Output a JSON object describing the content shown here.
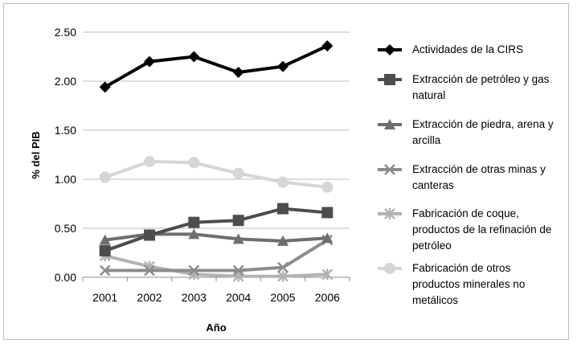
{
  "chart_data": {
    "type": "line",
    "title": "",
    "xlabel": "Año",
    "ylabel": "% del PIB",
    "categories": [
      "2001",
      "2002",
      "2003",
      "2004",
      "2005",
      "2006"
    ],
    "ylim": [
      0,
      2.5
    ],
    "yticks": [
      "0.00",
      "0.50",
      "1.00",
      "1.50",
      "2.00",
      "2.50"
    ],
    "grid": true,
    "legend_position": "right",
    "series": [
      {
        "name": "Actividades de la CIRS",
        "name_lines": [
          "Actividades de la CIRS"
        ],
        "values": [
          1.94,
          2.2,
          2.25,
          2.09,
          2.15,
          2.36
        ],
        "color": "#000000",
        "marker": "diamond"
      },
      {
        "name": "Extracción de petróleo y gas natural",
        "name_lines": [
          "Extracción de petróleo y gas",
          "natural"
        ],
        "values": [
          0.27,
          0.43,
          0.56,
          0.58,
          0.7,
          0.66
        ],
        "color": "#4d4d4d",
        "marker": "square"
      },
      {
        "name": "Extracción de piedra, arena y arcilla",
        "name_lines": [
          "Extracción de piedra, arena y",
          "arcilla"
        ],
        "values": [
          0.38,
          0.44,
          0.44,
          0.39,
          0.37,
          0.4
        ],
        "color": "#6e6e6e",
        "marker": "triangle"
      },
      {
        "name": "Extracción de otras minas y canteras",
        "name_lines": [
          "Extracción de otras minas y",
          "canteras"
        ],
        "values": [
          0.07,
          0.07,
          0.07,
          0.07,
          0.1,
          0.38
        ],
        "color": "#8c8c8c",
        "marker": "x"
      },
      {
        "name": "Fabricación de coque, productos de la refinación de petróleo",
        "name_lines": [
          "Fabricación de coque,",
          "productos de la refinación de",
          "petróleo"
        ],
        "values": [
          0.22,
          0.11,
          0.03,
          0.01,
          0.01,
          0.03
        ],
        "color": "#b3b3b3",
        "marker": "star"
      },
      {
        "name": "Fabricación de otros productos minerales no metálicos",
        "name_lines": [
          "Fabricación de otros",
          "productos minerales no",
          "metálicos"
        ],
        "values": [
          1.02,
          1.18,
          1.17,
          1.06,
          0.97,
          0.92
        ],
        "color": "#d6d6d6",
        "marker": "circle"
      }
    ]
  }
}
